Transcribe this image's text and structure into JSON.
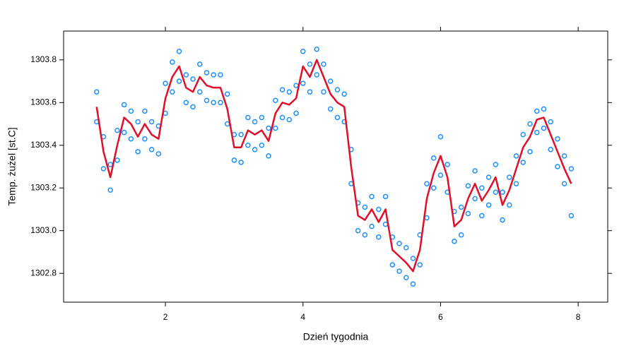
{
  "chart_data": {
    "type": "scatter",
    "x_label": "Dzień tygodnia",
    "y_label": "Temp. żużel [st.C]",
    "xlim": [
      0.52,
      8.43
    ],
    "ylim": [
      1302.665,
      1303.935
    ],
    "xticks": [
      2,
      4,
      6,
      8
    ],
    "yticks": [
      1302.8,
      {
        "value": 1303.0,
        "label": "1303.0"
      },
      1303.2,
      1303.4,
      1303.6,
      1303.8
    ],
    "x": [
      1.0,
      1.1,
      1.2,
      1.3,
      1.4,
      1.5,
      1.6,
      1.7,
      1.8,
      1.9,
      2.0,
      2.1,
      2.2,
      2.3,
      2.4,
      2.5,
      2.6,
      2.7,
      2.8,
      2.9,
      3.0,
      3.1,
      3.2,
      3.3,
      3.4,
      3.5,
      3.6,
      3.7,
      3.8,
      3.9,
      4.0,
      4.1,
      4.2,
      4.3,
      4.4,
      4.5,
      4.6,
      4.7,
      4.8,
      4.9,
      5.0,
      5.1,
      5.2,
      5.3,
      5.4,
      5.5,
      5.6,
      5.7,
      5.8,
      5.9,
      6.0,
      6.1,
      6.2,
      6.3,
      6.4,
      6.5,
      6.6,
      6.7,
      6.8,
      6.9,
      7.0,
      7.1,
      7.2,
      7.3,
      7.4,
      7.5,
      7.6,
      7.7,
      7.8,
      7.9
    ],
    "series": [
      {
        "type": "scatter",
        "color": "#1e8fff",
        "values": [
          1303.65,
          1303.44,
          1303.31,
          1303.47,
          1303.59,
          1303.56,
          1303.51,
          1303.56,
          1303.51,
          1303.49,
          1303.69,
          1303.79,
          1303.84,
          1303.73,
          1303.71,
          1303.78,
          1303.74,
          1303.73,
          1303.73,
          1303.64,
          1303.45,
          1303.45,
          1303.53,
          1303.51,
          1303.53,
          1303.48,
          1303.61,
          1303.66,
          1303.65,
          1303.68,
          1303.84,
          1303.78,
          1303.85,
          1303.78,
          1303.7,
          1303.66,
          1303.64,
          1303.38,
          1303.13,
          1303.11,
          1303.16,
          1303.1,
          1303.16,
          1302.97,
          1302.94,
          1302.92,
          1302.87,
          1302.98,
          1303.22,
          1303.34,
          1303.44,
          1303.31,
          1303.09,
          1303.11,
          1303.21,
          1303.28,
          1303.2,
          1303.25,
          1303.31,
          1303.18,
          1303.25,
          1303.35,
          1303.45,
          1303.5,
          1303.56,
          1303.57,
          1303.51,
          1303.43,
          1303.35,
          1303.29
        ]
      },
      {
        "type": "scatter",
        "color": "#1e8fff",
        "values": [
          1303.51,
          1303.29,
          1303.19,
          1303.33,
          1303.46,
          1303.43,
          1303.37,
          1303.43,
          1303.38,
          1303.36,
          1303.55,
          1303.65,
          1303.7,
          1303.6,
          1303.58,
          1303.65,
          1303.61,
          1303.6,
          1303.6,
          1303.5,
          1303.33,
          1303.32,
          1303.4,
          1303.38,
          1303.4,
          1303.35,
          1303.48,
          1303.53,
          1303.52,
          1303.55,
          1303.69,
          1303.65,
          1303.73,
          1303.65,
          1303.57,
          1303.53,
          1303.51,
          1303.22,
          1303.0,
          1302.98,
          1303.02,
          1302.97,
          1303.03,
          1302.84,
          1302.81,
          1302.78,
          1302.75,
          1302.84,
          1303.06,
          1303.2,
          1303.26,
          1303.18,
          1302.95,
          1302.98,
          1303.08,
          1303.15,
          1303.07,
          1303.12,
          1303.18,
          1303.05,
          1303.12,
          1303.22,
          1303.32,
          1303.37,
          1303.46,
          1303.48,
          1303.38,
          1303.3,
          1303.22,
          1303.07
        ]
      },
      {
        "type": "line",
        "color": "#e0102a",
        "values": [
          1303.58,
          1303.37,
          1303.25,
          1303.4,
          1303.53,
          1303.5,
          1303.44,
          1303.5,
          1303.45,
          1303.43,
          1303.62,
          1303.72,
          1303.77,
          1303.67,
          1303.65,
          1303.72,
          1303.68,
          1303.67,
          1303.67,
          1303.57,
          1303.39,
          1303.39,
          1303.47,
          1303.45,
          1303.47,
          1303.42,
          1303.55,
          1303.6,
          1303.59,
          1303.62,
          1303.77,
          1303.72,
          1303.8,
          1303.72,
          1303.64,
          1303.6,
          1303.58,
          1303.3,
          1303.07,
          1303.05,
          1303.1,
          1303.04,
          1303.1,
          1302.91,
          1302.88,
          1302.85,
          1302.81,
          1302.91,
          1303.15,
          1303.27,
          1303.35,
          1303.25,
          1303.02,
          1303.05,
          1303.15,
          1303.22,
          1303.14,
          1303.19,
          1303.25,
          1303.12,
          1303.19,
          1303.29,
          1303.39,
          1303.44,
          1303.52,
          1303.53,
          1303.45,
          1303.37,
          1303.29,
          1303.22
        ]
      }
    ]
  }
}
